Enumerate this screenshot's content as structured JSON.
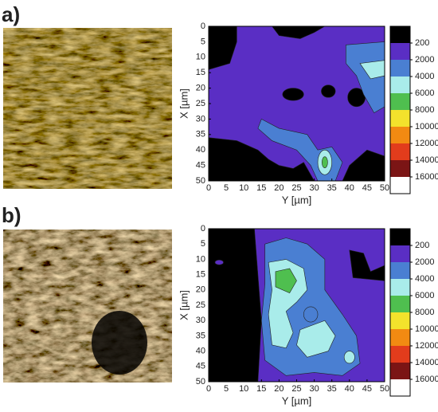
{
  "chart_data": [
    {
      "type": "contour",
      "panel_label": "a)",
      "xlabel": "Y [µm]",
      "ylabel": "X [µm]",
      "xlim": [
        0,
        50
      ],
      "ylim": [
        50,
        0
      ],
      "xticks": [
        0,
        5,
        10,
        15,
        20,
        25,
        30,
        35,
        40,
        45,
        50
      ],
      "yticks": [
        0,
        5,
        10,
        15,
        20,
        25,
        30,
        35,
        40,
        45,
        50
      ],
      "colorbar": {
        "levels": [
          200,
          2000,
          4000,
          6000,
          8000,
          10000,
          12000,
          14000,
          16000
        ],
        "colors": [
          "#000000",
          "#5a2ec4",
          "#4a7fd2",
          "#a9ecea",
          "#4fbf4f",
          "#f3e22c",
          "#f28a12",
          "#e23c1c",
          "#7b1515",
          "#ffffff"
        ]
      }
    },
    {
      "type": "contour",
      "panel_label": "b)",
      "xlabel": "Y [µm]",
      "ylabel": "X [µm]",
      "xlim": [
        0,
        50
      ],
      "ylim": [
        50,
        0
      ],
      "xticks": [
        0,
        5,
        10,
        15,
        20,
        25,
        30,
        35,
        40,
        45,
        50
      ],
      "yticks": [
        0,
        5,
        10,
        15,
        20,
        25,
        30,
        35,
        40,
        45,
        50
      ],
      "colorbar": {
        "levels": [
          200,
          2000,
          4000,
          6000,
          8000,
          10000,
          12000,
          14000,
          16000
        ],
        "colors": [
          "#000000",
          "#5a2ec4",
          "#4a7fd2",
          "#a9ecea",
          "#4fbf4f",
          "#f3e22c",
          "#f28a12",
          "#e23c1c",
          "#7b1515",
          "#ffffff"
        ]
      }
    }
  ]
}
